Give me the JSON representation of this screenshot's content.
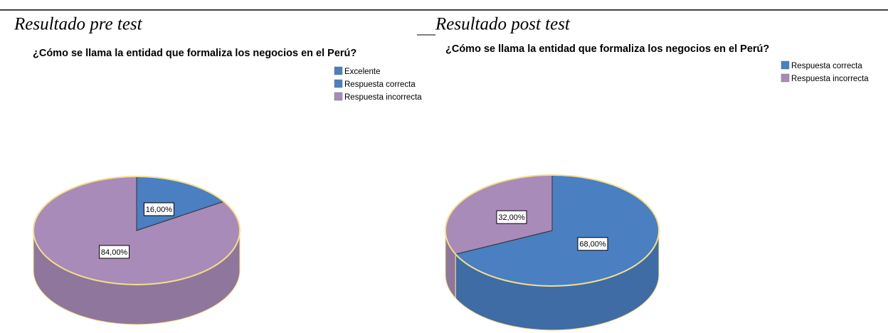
{
  "chart_data": [
    {
      "type": "pie",
      "heading": "Resultado pre test",
      "title": "¿Cómo se llama la entidad que formaliza los negocios en el Perú?",
      "categories": [
        "Excelente",
        "Respuesta correcta",
        "Respuesta incorrecta"
      ],
      "values": [
        null,
        16,
        84
      ],
      "value_labels": [
        null,
        "16,00%",
        "84,00%"
      ],
      "colors": [
        "#4a7fc1",
        "#4a7fc1",
        "#a88bb8"
      ]
    },
    {
      "type": "pie",
      "heading": "Resultado post test",
      "title": "¿Cómo se llama la entidad que formaliza los negocios en el Perú?",
      "categories": [
        "Respuesta correcta",
        "Respuesta incorrecta"
      ],
      "values": [
        68,
        32
      ],
      "value_labels": [
        "68,00%",
        "32,00%"
      ],
      "colors": [
        "#4a7fc1",
        "#a88bb8"
      ]
    }
  ]
}
